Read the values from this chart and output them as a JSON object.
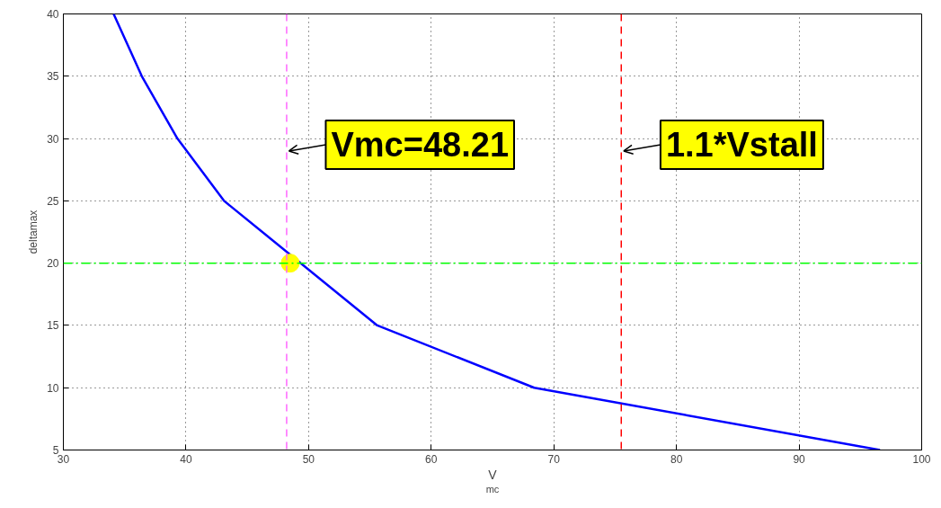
{
  "chart_data": {
    "type": "line",
    "xlabel": "V$_{mc}$",
    "ylabel": "deltamax",
    "xlim": [
      30,
      100
    ],
    "ylim": [
      5,
      40
    ],
    "xticks": [
      30,
      40,
      50,
      60,
      70,
      80,
      90,
      100
    ],
    "yticks": [
      5,
      10,
      15,
      20,
      25,
      30,
      35,
      40
    ],
    "grid": true,
    "series": [
      {
        "color": "#0000ff",
        "x": [
          34.1,
          36.4,
          39.3,
          43.1,
          55.6,
          68.4,
          96.6
        ],
        "values": [
          40,
          35,
          30,
          25,
          15,
          10,
          5
        ]
      },
      {
        "type": "scatter",
        "color": "#ffff00",
        "marker": "circle",
        "x": [
          48.5
        ],
        "values": [
          20
        ]
      }
    ],
    "ref_lines": [
      {
        "axis": "x",
        "value": 48.21,
        "color": "#ff66ff",
        "line_style": "dashed"
      },
      {
        "axis": "x",
        "value": 75.5,
        "color": "#ff0000",
        "line_style": "dashed"
      },
      {
        "axis": "y",
        "value": 20,
        "color": "#00ff00",
        "line_style": "dashdot"
      }
    ],
    "annotations": [
      {
        "text": "Vmc=48.21",
        "x": 48.4,
        "y": 29
      },
      {
        "text": "1.1*Vstall",
        "x": 75.7,
        "y": 29
      }
    ]
  }
}
